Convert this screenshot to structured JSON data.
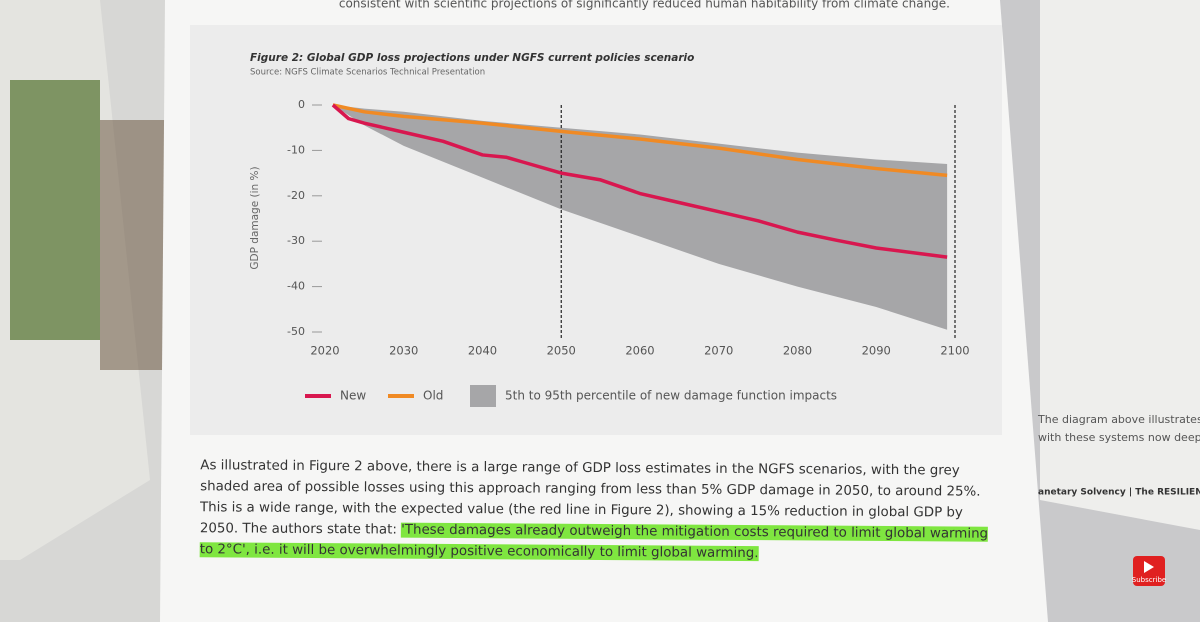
{
  "chart_data": {
    "type": "line",
    "title": "Figure 2: Global GDP loss projections under NGFS current policies scenario",
    "subtitle": "Source: NGFS Climate Scenarios Technical Presentation",
    "y_label": "GDP damage (in %)",
    "xlim": [
      2020,
      2100
    ],
    "xticks": [
      2020,
      2030,
      2040,
      2050,
      2060,
      2070,
      2080,
      2090,
      2100
    ],
    "ylim": [
      -50,
      0
    ],
    "yticks": [
      0,
      -10,
      -20,
      -30,
      -40,
      -50
    ],
    "markers_x": [
      2050,
      2100
    ],
    "band": {
      "name": "5th to 95th percentile of new damage function impacts",
      "color": "#a6a6a8",
      "x": [
        2021,
        2025,
        2030,
        2040,
        2050,
        2060,
        2070,
        2080,
        2090,
        2099
      ],
      "upper": [
        0,
        -0.8,
        -1.5,
        -3.5,
        -5,
        -6.5,
        -8.5,
        -10.5,
        -12,
        -13
      ],
      "lower": [
        0,
        -4.5,
        -9,
        -16,
        -23,
        -29,
        -35,
        -40,
        -44.5,
        -49.5
      ]
    },
    "series": [
      {
        "name": "New",
        "color": "#d8174f",
        "x": [
          2021,
          2023,
          2025,
          2030,
          2035,
          2040,
          2043,
          2045,
          2050,
          2055,
          2060,
          2065,
          2070,
          2075,
          2080,
          2085,
          2090,
          2099
        ],
        "values": [
          0,
          -3,
          -4,
          -6,
          -8,
          -11,
          -11.5,
          -12.5,
          -15,
          -16.5,
          -19.5,
          -21.5,
          -23.5,
          -25.5,
          -28,
          -29.8,
          -31.5,
          -33.5
        ]
      },
      {
        "name": "Old",
        "color": "#f08a24",
        "x": [
          2021,
          2025,
          2030,
          2040,
          2050,
          2060,
          2070,
          2080,
          2090,
          2099
        ],
        "values": [
          0,
          -1.5,
          -2.5,
          -4,
          -5.8,
          -7.5,
          -9.5,
          -12,
          -14,
          -15.5
        ]
      }
    ]
  },
  "document": {
    "top_line": "consistent with scientific projections of significantly reduced human habitability from climate change.",
    "paragraph": "As illustrated in Figure 2 above, there is a large range of GDP loss estimates in the NGFS scenarios, with the grey shaded area of possible losses using this approach ranging from less than 5% GDP damage in 2050, to around 25%. This is a wide range, with the expected value (the red line in Figure 2), showing a 15% reduction in global GDP by 2050. The authors state that: ",
    "highlight": "'These damages already outweigh the mitigation costs required to limit global warming to 2°C', i.e. it will be overwhelmingly positive economically to limit global warming.",
    "side_lines": [
      "The diagram above illustrates",
      "with these systems now deepl",
      "anetary Solvency | The RESILIENCE prin"
    ],
    "subscribe": "Subscribe"
  }
}
